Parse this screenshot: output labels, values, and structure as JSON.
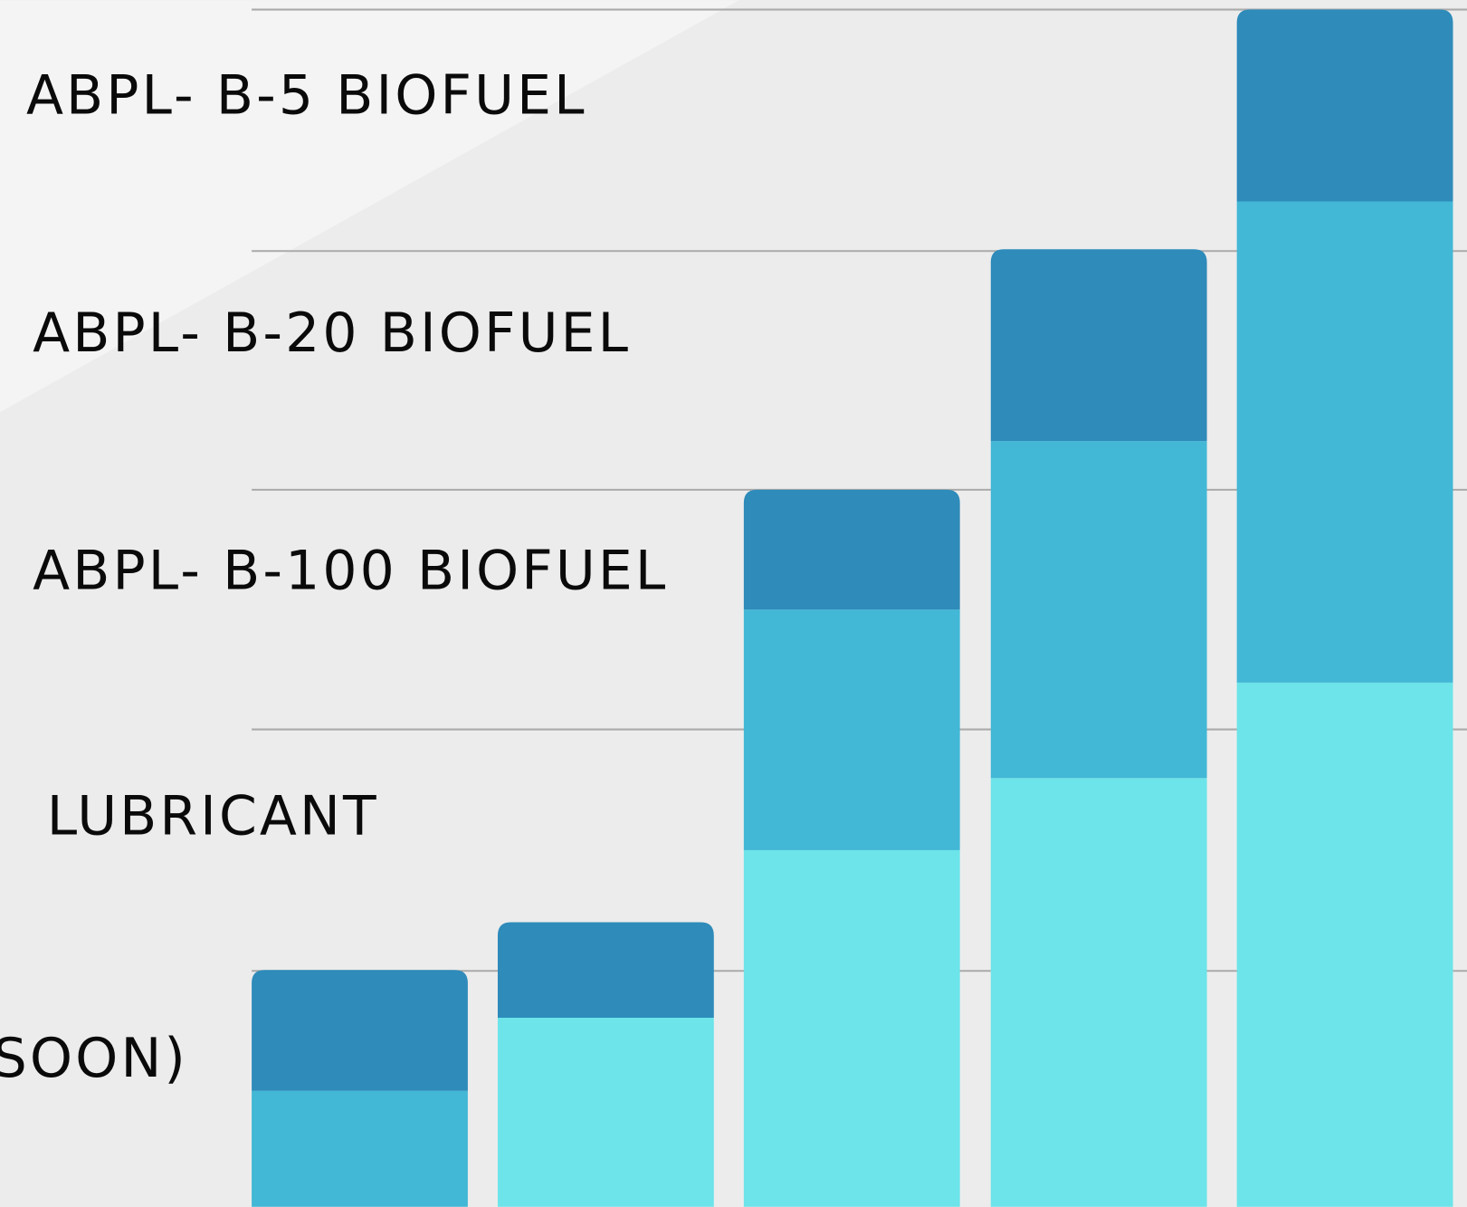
{
  "labels": [
    "ABPL- B-5 BIOFUEL",
    "ABPL- B-20 BIOFUEL",
    "ABPL- B-100 BIOFUEL",
    "LUBRICANT",
    "SOON)"
  ]
}
